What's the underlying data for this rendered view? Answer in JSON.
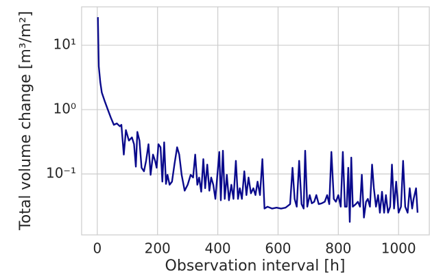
{
  "chart_data": {
    "type": "line",
    "xlabel": "Observation interval [h]",
    "ylabel": "Total volume change [m³/m²]",
    "color": "#0a0a8c",
    "yscale": "log",
    "grid": true,
    "xlim": [
      -52,
      1102
    ],
    "ylim": [
      0.0113,
      39.5
    ],
    "xticks": [
      0,
      200,
      400,
      600,
      800,
      1000
    ],
    "yticks": [
      {
        "value": 0.1,
        "label": "10⁻¹"
      },
      {
        "value": 1,
        "label": "10⁰"
      },
      {
        "value": 10,
        "label": "10¹"
      }
    ],
    "x": [
      2,
      5,
      10,
      15,
      25,
      35,
      45,
      55,
      65,
      75,
      80,
      88,
      95,
      105,
      115,
      122,
      128,
      133,
      140,
      147,
      155,
      162,
      170,
      177,
      185,
      192,
      197,
      203,
      210,
      216,
      222,
      228,
      233,
      240,
      248,
      256,
      265,
      272,
      280,
      290,
      300,
      310,
      318,
      325,
      332,
      338,
      345,
      352,
      358,
      365,
      372,
      378,
      385,
      392,
      398,
      405,
      410,
      417,
      423,
      430,
      437,
      445,
      452,
      460,
      467,
      473,
      480,
      488,
      495,
      502,
      510,
      518,
      525,
      532,
      540,
      548,
      555,
      565,
      580,
      595,
      610,
      625,
      640,
      648,
      655,
      662,
      670,
      678,
      685,
      690,
      697,
      705,
      712,
      720,
      727,
      735,
      745,
      755,
      763,
      770,
      777,
      785,
      792,
      800,
      808,
      815,
      822,
      828,
      833,
      838,
      843,
      848,
      858,
      865,
      872,
      878,
      885,
      892,
      898,
      905,
      912,
      918,
      925,
      932,
      938,
      945,
      952,
      958,
      965,
      972,
      978,
      985,
      992,
      1000,
      1008,
      1015,
      1022,
      1030,
      1037,
      1045,
      1050,
      1058,
      1063
    ],
    "values": [
      27.3,
      4.7,
      2.66,
      1.84,
      1.34,
      1.0,
      0.75,
      0.58,
      0.61,
      0.55,
      0.58,
      0.2,
      0.48,
      0.33,
      0.37,
      0.29,
      0.13,
      0.45,
      0.33,
      0.125,
      0.11,
      0.16,
      0.29,
      0.097,
      0.2,
      0.16,
      0.125,
      0.29,
      0.26,
      0.076,
      0.31,
      0.07,
      0.097,
      0.068,
      0.076,
      0.14,
      0.26,
      0.2,
      0.097,
      0.055,
      0.068,
      0.097,
      0.088,
      0.2,
      0.068,
      0.088,
      0.053,
      0.17,
      0.06,
      0.14,
      0.055,
      0.088,
      0.068,
      0.041,
      0.09,
      0.22,
      0.039,
      0.23,
      0.041,
      0.097,
      0.039,
      0.068,
      0.041,
      0.16,
      0.041,
      0.06,
      0.041,
      0.11,
      0.047,
      0.088,
      0.05,
      0.06,
      0.047,
      0.076,
      0.047,
      0.17,
      0.029,
      0.031,
      0.029,
      0.03,
      0.029,
      0.03,
      0.034,
      0.125,
      0.041,
      0.031,
      0.16,
      0.034,
      0.029,
      0.23,
      0.031,
      0.047,
      0.035,
      0.037,
      0.047,
      0.034,
      0.035,
      0.037,
      0.047,
      0.034,
      0.22,
      0.041,
      0.037,
      0.047,
      0.031,
      0.22,
      0.031,
      0.031,
      0.125,
      0.018,
      0.18,
      0.031,
      0.034,
      0.037,
      0.031,
      0.097,
      0.021,
      0.037,
      0.041,
      0.031,
      0.14,
      0.06,
      0.031,
      0.047,
      0.025,
      0.053,
      0.025,
      0.047,
      0.025,
      0.031,
      0.14,
      0.029,
      0.076,
      0.025,
      0.031,
      0.16,
      0.031,
      0.025,
      0.06,
      0.029,
      0.041,
      0.06,
      0.025
    ]
  }
}
